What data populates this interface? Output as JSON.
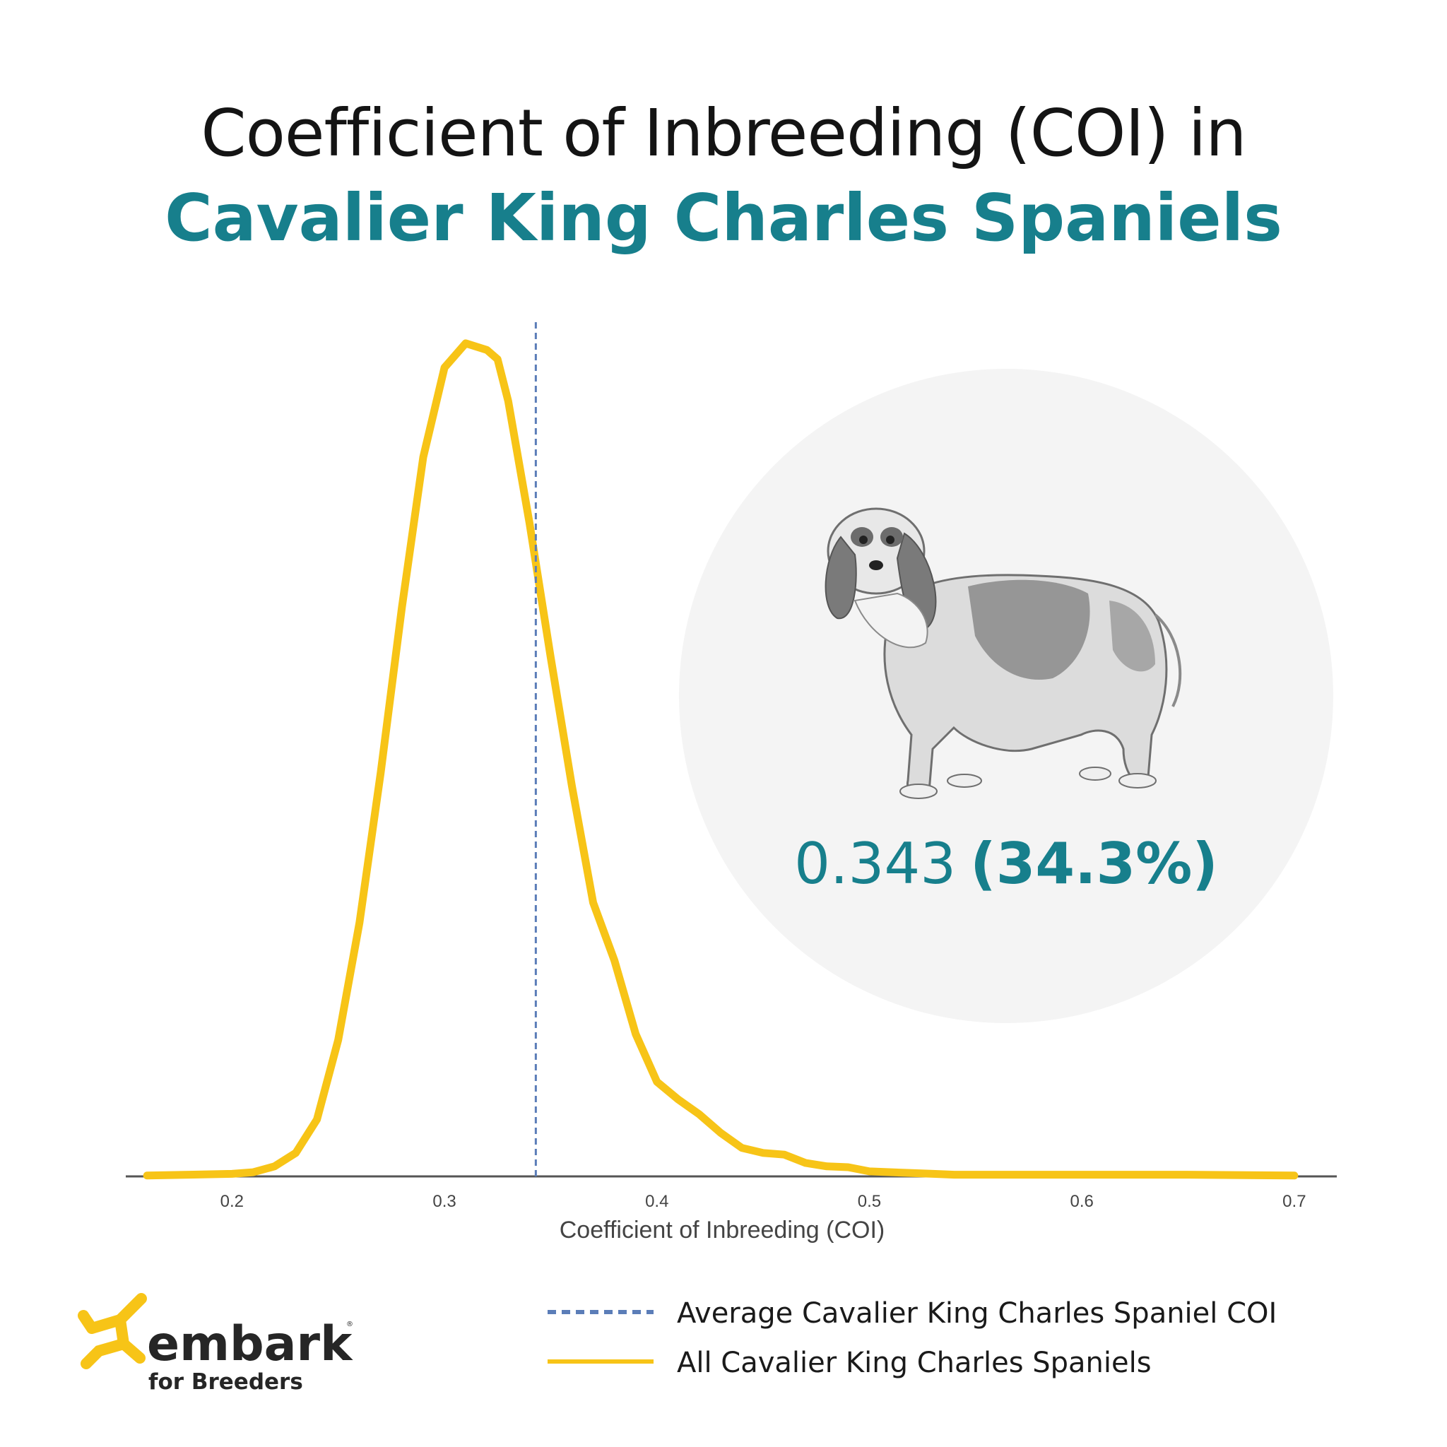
{
  "title": {
    "line1": "Coefficient of Inbreeding (COI) in",
    "line2": "Cavalier King Charles Spaniels"
  },
  "callout": {
    "value_text": "0.343",
    "percent_text": "(34.3%)"
  },
  "legend": {
    "average_label": "Average Cavalier King Charles Spaniel COI",
    "all_label": "All Cavalier King Charles Spaniels"
  },
  "brand": {
    "name": "embark",
    "registered": "®",
    "tagline": "for Breeders"
  },
  "colors": {
    "curve": "#F7C417",
    "average_line": "#5B7DB8",
    "teal": "#177F8C",
    "circle": "#F4F4F4",
    "axis": "#555555"
  },
  "icons": {
    "dog": "cavalier-spaniel-illustration-icon",
    "logo": "embark-logo-icon"
  },
  "chart_data": {
    "type": "line",
    "title": "",
    "xlabel": "Coefficient of Inbreeding (COI)",
    "ylabel": "",
    "xlim": [
      0.15,
      0.72
    ],
    "ylim": [
      0,
      1
    ],
    "x_ticks": [
      0.2,
      0.3,
      0.4,
      0.5,
      0.6,
      0.7
    ],
    "x_tick_labels": [
      "0.2",
      "0.3",
      "0.4",
      "0.5",
      "0.6",
      "0.7"
    ],
    "grid": false,
    "legend_position": "bottom-right",
    "average_coi": 0.343,
    "series": [
      {
        "name": "All Cavalier King Charles Spaniels",
        "style": "solid",
        "x": [
          0.16,
          0.18,
          0.2,
          0.21,
          0.22,
          0.23,
          0.24,
          0.25,
          0.26,
          0.27,
          0.28,
          0.29,
          0.3,
          0.31,
          0.32,
          0.325,
          0.33,
          0.34,
          0.35,
          0.36,
          0.37,
          0.38,
          0.39,
          0.4,
          0.41,
          0.42,
          0.43,
          0.44,
          0.45,
          0.46,
          0.47,
          0.48,
          0.49,
          0.5,
          0.52,
          0.53,
          0.54,
          0.55,
          0.57,
          0.6,
          0.62,
          0.65,
          0.7
        ],
        "y": [
          0.001,
          0.002,
          0.003,
          0.005,
          0.012,
          0.028,
          0.068,
          0.163,
          0.303,
          0.482,
          0.68,
          0.859,
          0.966,
          0.995,
          0.987,
          0.976,
          0.926,
          0.781,
          0.62,
          0.466,
          0.327,
          0.258,
          0.17,
          0.113,
          0.092,
          0.074,
          0.052,
          0.034,
          0.028,
          0.026,
          0.016,
          0.012,
          0.011,
          0.006,
          0.004,
          0.003,
          0.002,
          0.002,
          0.002,
          0.002,
          0.002,
          0.002,
          0.001
        ]
      },
      {
        "name": "Average Cavalier King Charles Spaniel COI",
        "style": "dashed",
        "x": [
          0.343,
          0.343
        ],
        "y": [
          0,
          1
        ]
      }
    ]
  }
}
